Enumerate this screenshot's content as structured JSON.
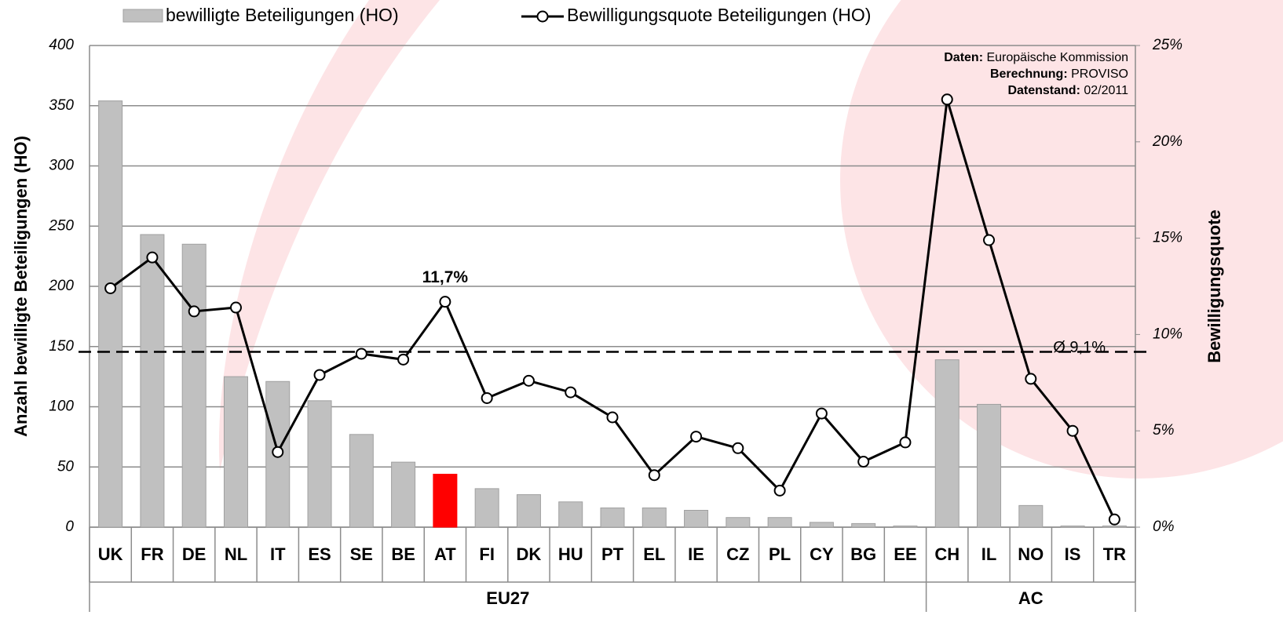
{
  "chart_data": {
    "type": "bar_line",
    "categories": [
      "UK",
      "FR",
      "DE",
      "NL",
      "IT",
      "ES",
      "SE",
      "BE",
      "AT",
      "FI",
      "DK",
      "HU",
      "PT",
      "EL",
      "IE",
      "CZ",
      "PL",
      "CY",
      "BG",
      "EE",
      "CH",
      "IL",
      "NO",
      "IS",
      "TR"
    ],
    "groups": [
      {
        "name": "EU27",
        "count": 20
      },
      {
        "name": "AC",
        "count": 5
      }
    ],
    "series": [
      {
        "name": "bewilligte Beteiligungen (HO)",
        "type": "bar",
        "color": "#c0c0c0",
        "colors": [
          "#c0c0c0",
          "#c0c0c0",
          "#c0c0c0",
          "#c0c0c0",
          "#c0c0c0",
          "#c0c0c0",
          "#c0c0c0",
          "#c0c0c0",
          "#ff0000",
          "#c0c0c0",
          "#c0c0c0",
          "#c0c0c0",
          "#c0c0c0",
          "#c0c0c0",
          "#c0c0c0",
          "#c0c0c0",
          "#c0c0c0",
          "#c0c0c0",
          "#c0c0c0",
          "#c0c0c0",
          "#c0c0c0",
          "#c0c0c0",
          "#c0c0c0",
          "#c0c0c0",
          "#c0c0c0"
        ],
        "values": [
          354,
          243,
          235,
          125,
          121,
          105,
          77,
          54,
          44,
          32,
          27,
          21,
          16,
          16,
          14,
          8,
          8,
          4,
          3,
          1,
          139,
          102,
          18,
          1,
          1
        ]
      },
      {
        "name": "Bewilligungsquote Beteiligungen (HO)",
        "type": "line",
        "axis": "y2",
        "color": "#000000",
        "values": [
          12.4,
          14.0,
          11.2,
          11.4,
          3.9,
          7.9,
          9.0,
          8.7,
          11.7,
          6.7,
          7.6,
          7.0,
          5.7,
          2.7,
          4.7,
          4.1,
          1.9,
          5.9,
          3.4,
          4.4,
          22.2,
          14.9,
          7.7,
          5.0,
          0.4
        ],
        "value_labels": [
          null,
          null,
          null,
          null,
          null,
          null,
          null,
          null,
          "11,7%",
          null,
          null,
          null,
          null,
          null,
          null,
          null,
          null,
          null,
          null,
          null,
          null,
          null,
          null,
          null,
          null
        ]
      }
    ],
    "ylabel": "Anzahl bewilligte Beteiligungen (HO)",
    "y2label": "Bewilligungsquote",
    "ylim": [
      0,
      400
    ],
    "yticks": [
      0,
      50,
      100,
      150,
      200,
      250,
      300,
      350,
      400
    ],
    "y2lim": [
      0,
      25
    ],
    "y2ticks": [
      {
        "value": 0,
        "label": "0%"
      },
      {
        "value": 5,
        "label": "5%"
      },
      {
        "value": 10,
        "label": "10%"
      },
      {
        "value": 15,
        "label": "15%"
      },
      {
        "value": 20,
        "label": "20%"
      },
      {
        "value": 25,
        "label": "25%"
      }
    ],
    "average": {
      "value": 9.1,
      "label": "Ø 9,1%",
      "axis": "y2"
    },
    "grid": true,
    "legend": "top",
    "notes": [
      {
        "label": "Daten:",
        "text": "Europäische Kommission"
      },
      {
        "label": "Berechnung:",
        "text": "PROVISO"
      },
      {
        "label": "Datenstand:",
        "text": "02/2011"
      }
    ]
  }
}
